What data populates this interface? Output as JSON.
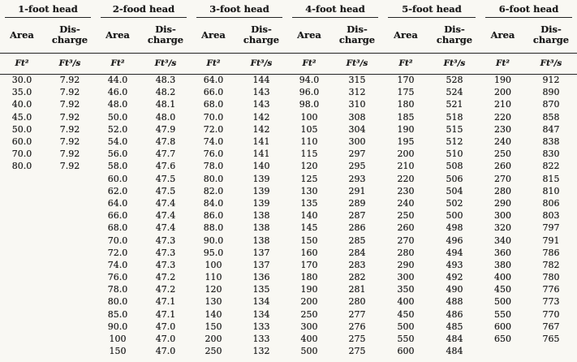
{
  "colors": {
    "paper": "#f9f8f3",
    "ink": "#1b1b1b"
  },
  "table": {
    "groups": [
      {
        "title": "1-foot head",
        "columns": {
          "area_label": "Area",
          "discharge_label": "Dis-charge",
          "area_unit": "Ft²",
          "discharge_unit": "Ft³/s"
        },
        "rows": [
          [
            "30.0",
            "7.92"
          ],
          [
            "35.0",
            "7.92"
          ],
          [
            "40.0",
            "7.92"
          ],
          [
            "45.0",
            "7.92"
          ],
          [
            "50.0",
            "7.92"
          ],
          [
            "60.0",
            "7.92"
          ],
          [
            "70.0",
            "7.92"
          ],
          [
            "80.0",
            "7.92"
          ]
        ]
      },
      {
        "title": "2-food head",
        "columns": {
          "area_label": "Area",
          "discharge_label": "Dis-charge",
          "area_unit": "Ft²",
          "discharge_unit": "Ft³/s"
        },
        "rows": [
          [
            "44.0",
            "48.3"
          ],
          [
            "46.0",
            "48.2"
          ],
          [
            "48.0",
            "48.1"
          ],
          [
            "50.0",
            "48.0"
          ],
          [
            "52.0",
            "47.9"
          ],
          [
            "54.0",
            "47.8"
          ],
          [
            "56.0",
            "47.7"
          ],
          [
            "58.0",
            "47.6"
          ],
          [
            "60.0",
            "47.5"
          ],
          [
            "62.0",
            "47.5"
          ],
          [
            "64.0",
            "47.4"
          ],
          [
            "66.0",
            "47.4"
          ],
          [
            "68.0",
            "47.4"
          ],
          [
            "70.0",
            "47.3"
          ],
          [
            "72.0",
            "47.3"
          ],
          [
            "74.0",
            "47.3"
          ],
          [
            "76.0",
            "47.2"
          ],
          [
            "78.0",
            "47.2"
          ],
          [
            "80.0",
            "47.1"
          ],
          [
            "85.0",
            "47.1"
          ],
          [
            "90.0",
            "47.0"
          ],
          [
            "100",
            "47.0"
          ],
          [
            "150",
            "47.0"
          ]
        ]
      },
      {
        "title": "3-foot head",
        "columns": {
          "area_label": "Area",
          "discharge_label": "Dis-charge",
          "area_unit": "Ft²",
          "discharge_unit": "Ft³/s"
        },
        "rows": [
          [
            "64.0",
            "144"
          ],
          [
            "66.0",
            "143"
          ],
          [
            "68.0",
            "143"
          ],
          [
            "70.0",
            "142"
          ],
          [
            "72.0",
            "142"
          ],
          [
            "74.0",
            "141"
          ],
          [
            "76.0",
            "141"
          ],
          [
            "78.0",
            "140"
          ],
          [
            "80.0",
            "139"
          ],
          [
            "82.0",
            "139"
          ],
          [
            "84.0",
            "139"
          ],
          [
            "86.0",
            "138"
          ],
          [
            "88.0",
            "138"
          ],
          [
            "90.0",
            "138"
          ],
          [
            "95.0",
            "137"
          ],
          [
            "100",
            "137"
          ],
          [
            "110",
            "136"
          ],
          [
            "120",
            "135"
          ],
          [
            "130",
            "134"
          ],
          [
            "140",
            "134"
          ],
          [
            "150",
            "133"
          ],
          [
            "200",
            "133"
          ],
          [
            "250",
            "132"
          ]
        ]
      },
      {
        "title": "4-foot head",
        "columns": {
          "area_label": "Area",
          "discharge_label": "Dis-charge",
          "area_unit": "Ft²",
          "discharge_unit": "Ft³/s"
        },
        "rows": [
          [
            "94.0",
            "315"
          ],
          [
            "96.0",
            "312"
          ],
          [
            "98.0",
            "310"
          ],
          [
            "100",
            "308"
          ],
          [
            "105",
            "304"
          ],
          [
            "110",
            "300"
          ],
          [
            "115",
            "297"
          ],
          [
            "120",
            "295"
          ],
          [
            "125",
            "293"
          ],
          [
            "130",
            "291"
          ],
          [
            "135",
            "289"
          ],
          [
            "140",
            "287"
          ],
          [
            "145",
            "286"
          ],
          [
            "150",
            "285"
          ],
          [
            "160",
            "284"
          ],
          [
            "170",
            "283"
          ],
          [
            "180",
            "282"
          ],
          [
            "190",
            "281"
          ],
          [
            "200",
            "280"
          ],
          [
            "250",
            "277"
          ],
          [
            "300",
            "276"
          ],
          [
            "400",
            "275"
          ],
          [
            "500",
            "275"
          ]
        ]
      },
      {
        "title": "5-foot head",
        "columns": {
          "area_label": "Area",
          "discharge_label": "Dis-charge",
          "area_unit": "Ft²",
          "discharge_unit": "Ft³/s"
        },
        "rows": [
          [
            "170",
            "528"
          ],
          [
            "175",
            "524"
          ],
          [
            "180",
            "521"
          ],
          [
            "185",
            "518"
          ],
          [
            "190",
            "515"
          ],
          [
            "195",
            "512"
          ],
          [
            "200",
            "510"
          ],
          [
            "210",
            "508"
          ],
          [
            "220",
            "506"
          ],
          [
            "230",
            "504"
          ],
          [
            "240",
            "502"
          ],
          [
            "250",
            "500"
          ],
          [
            "260",
            "498"
          ],
          [
            "270",
            "496"
          ],
          [
            "280",
            "494"
          ],
          [
            "290",
            "493"
          ],
          [
            "300",
            "492"
          ],
          [
            "350",
            "490"
          ],
          [
            "400",
            "488"
          ],
          [
            "450",
            "486"
          ],
          [
            "500",
            "485"
          ],
          [
            "550",
            "484"
          ],
          [
            "600",
            "484"
          ]
        ]
      },
      {
        "title": "6-foot head",
        "columns": {
          "area_label": "Area",
          "discharge_label": "Dis-charge",
          "area_unit": "Ft²",
          "discharge_unit": "Ft³/s"
        },
        "rows": [
          [
            "190",
            "912"
          ],
          [
            "200",
            "890"
          ],
          [
            "210",
            "870"
          ],
          [
            "220",
            "858"
          ],
          [
            "230",
            "847"
          ],
          [
            "240",
            "838"
          ],
          [
            "250",
            "830"
          ],
          [
            "260",
            "822"
          ],
          [
            "270",
            "815"
          ],
          [
            "280",
            "810"
          ],
          [
            "290",
            "806"
          ],
          [
            "300",
            "803"
          ],
          [
            "320",
            "797"
          ],
          [
            "340",
            "791"
          ],
          [
            "360",
            "786"
          ],
          [
            "380",
            "782"
          ],
          [
            "400",
            "780"
          ],
          [
            "450",
            "776"
          ],
          [
            "500",
            "773"
          ],
          [
            "550",
            "770"
          ],
          [
            "600",
            "767"
          ],
          [
            "650",
            "765"
          ]
        ]
      }
    ]
  }
}
